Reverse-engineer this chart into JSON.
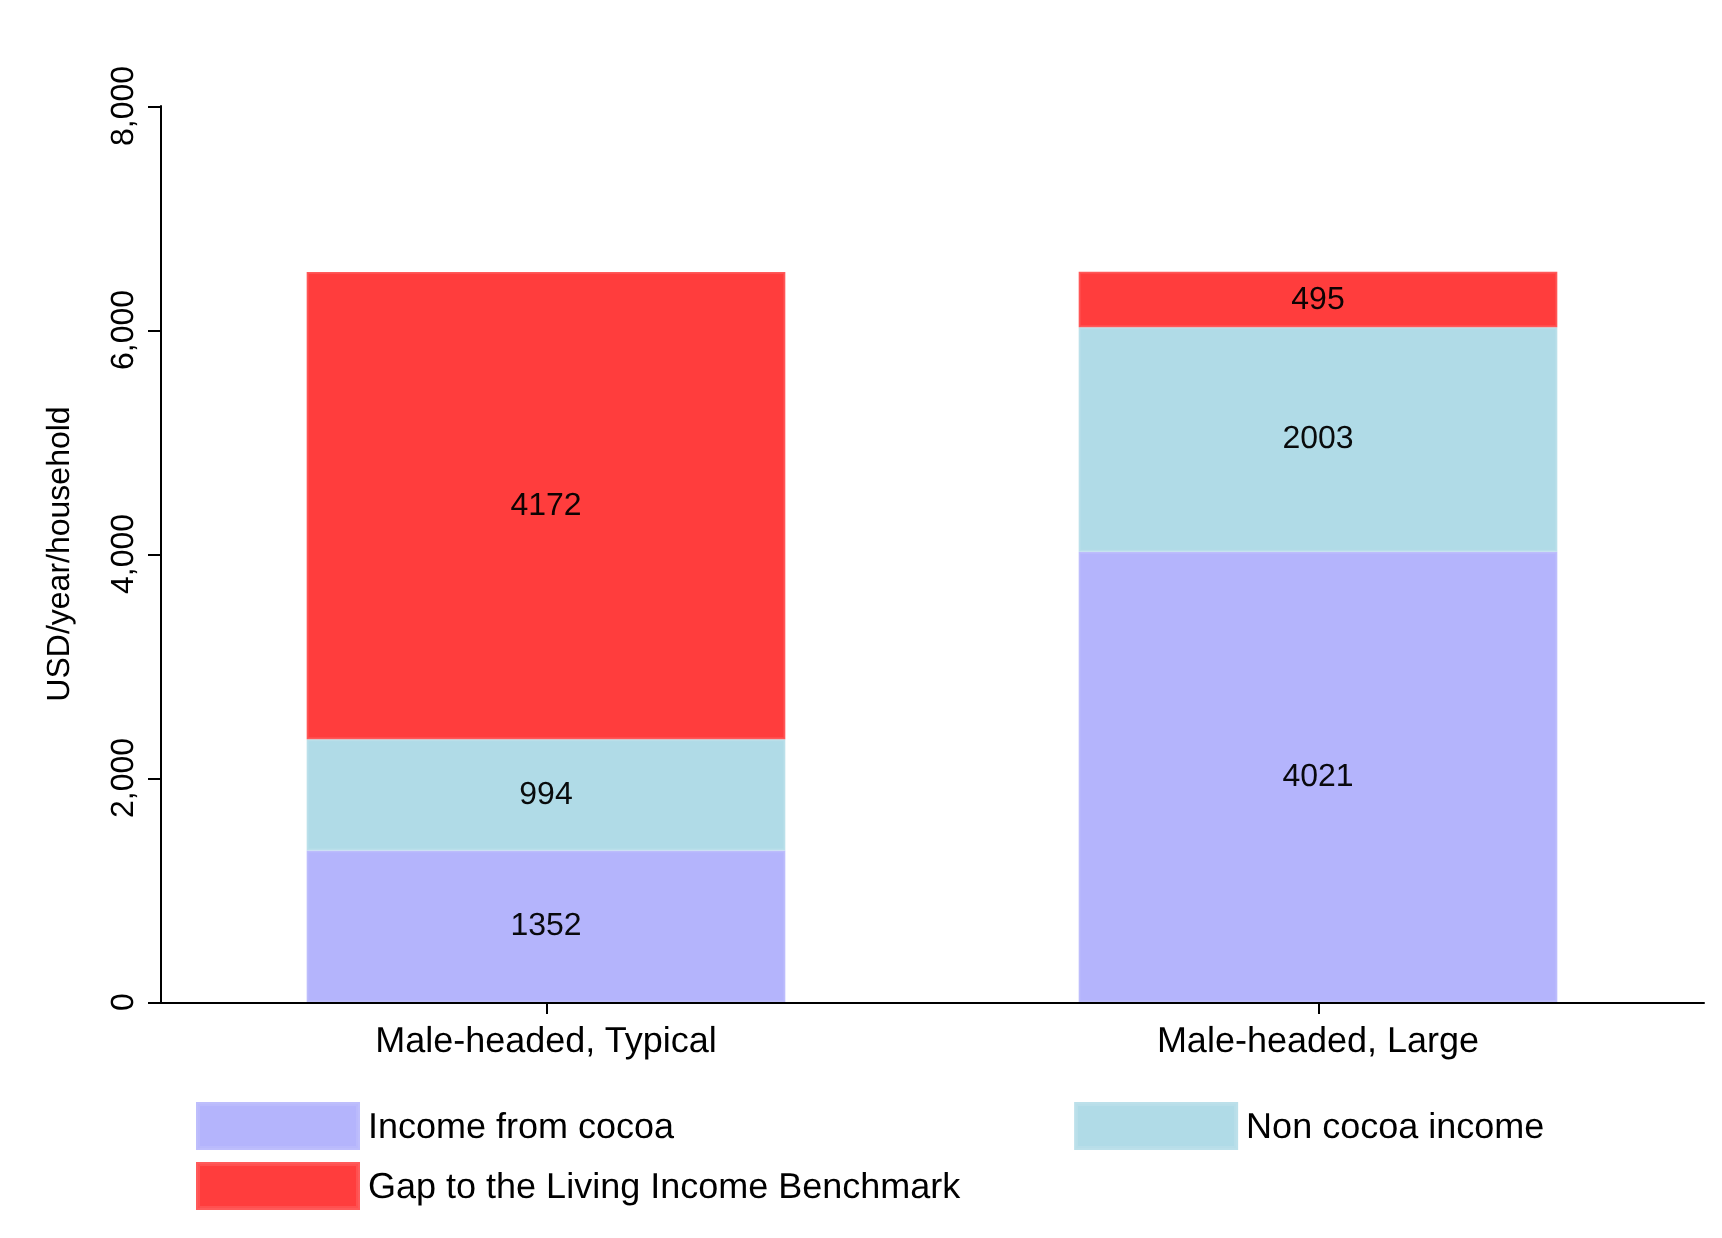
{
  "chart_data": {
    "type": "bar",
    "stacked": true,
    "ylabel": "USD/year/household",
    "categories": [
      "Male-headed, Typical",
      "Male-headed, Large"
    ],
    "series": [
      {
        "name": "Income from cocoa",
        "color": "#b0b0fc",
        "values": [
          1352,
          4021
        ]
      },
      {
        "name": "Non cocoa income",
        "color": "#acd9e6",
        "values": [
          994,
          2003
        ]
      },
      {
        "name": "Gap to the Living Income Benchmark",
        "color": "#ff3333",
        "values": [
          4172,
          495
        ]
      }
    ],
    "ylim": [
      0,
      8000
    ],
    "yticks": [
      {
        "value": 0,
        "label": "0"
      },
      {
        "value": 2000,
        "label": "2,000"
      },
      {
        "value": 4000,
        "label": "4,000"
      },
      {
        "value": 6000,
        "label": "6,000"
      },
      {
        "value": 8000,
        "label": "8,000"
      }
    ],
    "grid": false,
    "legend": "bottom",
    "data_labels": true
  }
}
